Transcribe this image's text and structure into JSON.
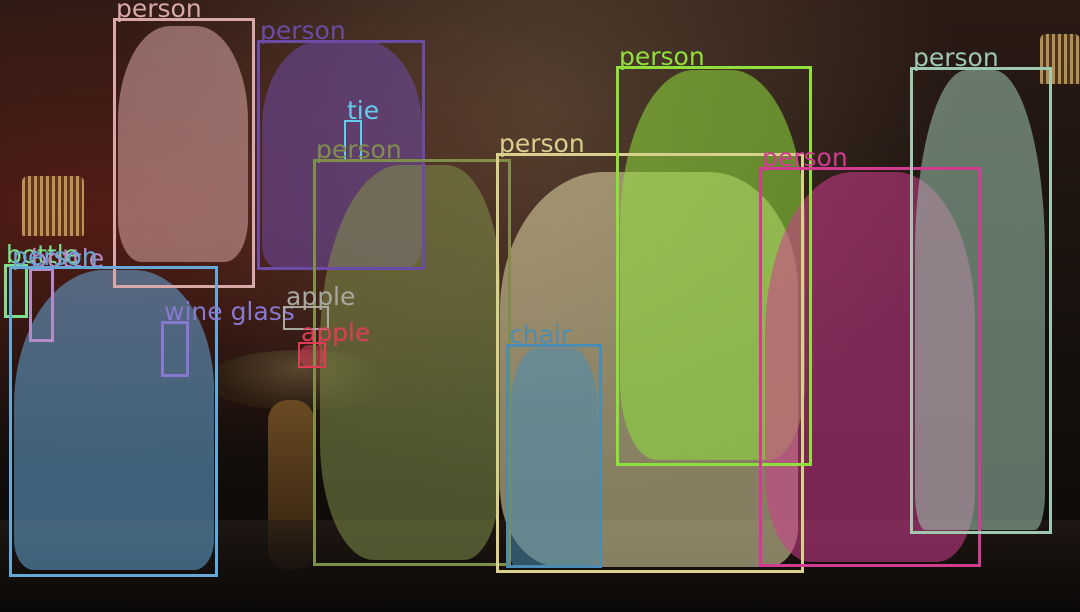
{
  "detections": [
    {
      "id": "p1",
      "label": "person",
      "color": "#d9a8a8"
    },
    {
      "id": "p2",
      "label": "person",
      "color": "#6b4aa8"
    },
    {
      "id": "tie",
      "label": "tie",
      "color": "#66ccee"
    },
    {
      "id": "p3",
      "label": "person",
      "color": "#7f8f4a"
    },
    {
      "id": "p4",
      "label": "person",
      "color": "#d8d08c"
    },
    {
      "id": "p5",
      "label": "person",
      "color": "#8fe03c"
    },
    {
      "id": "p6",
      "label": "person",
      "color": "#d23c90"
    },
    {
      "id": "p7",
      "label": "person",
      "color": "#9ec8b0"
    },
    {
      "id": "bottle1",
      "label": "bottle",
      "color": "#7ee08c"
    },
    {
      "id": "bottle2",
      "label": "bottle",
      "color": "#b48ccc"
    },
    {
      "id": "p8",
      "label": "person",
      "color": "#66a8d8"
    },
    {
      "id": "wine",
      "label": "wine glass",
      "color": "#8878d0"
    },
    {
      "id": "apple1",
      "label": "apple",
      "color": "#a8a8a0"
    },
    {
      "id": "apple2",
      "label": "apple",
      "color": "#e03c58"
    },
    {
      "id": "chair",
      "label": "chair",
      "color": "#4a8cb4"
    }
  ]
}
